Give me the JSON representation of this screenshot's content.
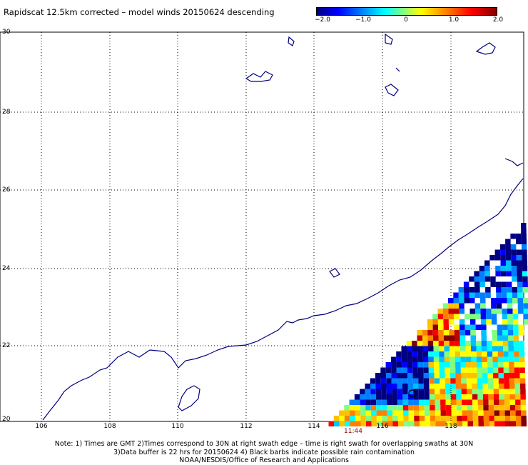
{
  "title": "Rapidscat 12.5km corrected – model winds 20150624 descending",
  "colorbar": {
    "labels": [
      {
        "text": "−2.0",
        "value": -2.0
      },
      {
        "text": "−1.0",
        "value": -1.0
      },
      {
        "text": "0",
        "value": 0
      },
      {
        "text": "1.0",
        "value": 1.0
      },
      {
        "text": "2.0",
        "value": 2.0
      }
    ],
    "min": -2.0,
    "max": 2.0
  },
  "map": {
    "lon_range": [
      105,
      120
    ],
    "lat_range": [
      20,
      30
    ],
    "lat_labels": [
      "30",
      "28",
      "26",
      "24",
      "22",
      "20"
    ],
    "lon_labels": [
      "106",
      "108",
      "110",
      "112",
      "114",
      "116",
      "118"
    ],
    "grid": true,
    "coastline_color": "#000080"
  },
  "swath_time": "11:44",
  "notes": {
    "line1": "Note: 1) Times are GMT 2)Times correspond to 30N at right swath edge – time is right swath for overlapping swaths at 30N",
    "line2": "3)Data buffer is 22 hrs for 20150624 4) Black barbs indicate possible rain contamination",
    "line3": "NOAA/NESDIS/Office of Research and Applications"
  }
}
